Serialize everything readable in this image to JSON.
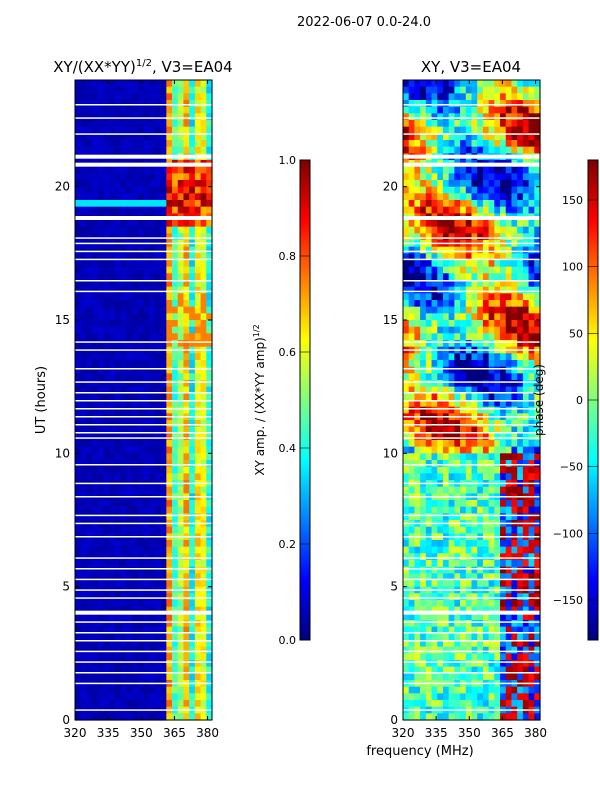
{
  "figure": {
    "suptitle": "2022-06-07 0.0-24.0",
    "shared_xlabel": "frequency (MHz)"
  },
  "chart_data": [
    {
      "type": "heatmap",
      "title": "XY/(XX*YY)^1/2, V3=EA04",
      "title_main": "XY/(XX*YY)",
      "title_exp": "1/2",
      "title_tail": ", V3=EA04",
      "xlabel": "frequency (MHz)",
      "ylabel": "UT (hours)",
      "xlim": [
        320,
        382
      ],
      "ylim": [
        0,
        24
      ],
      "xticks": [
        320,
        335,
        350,
        365,
        380
      ],
      "yticks": [
        0,
        5,
        10,
        15,
        20
      ],
      "colorbar": {
        "label_main": "XY amp. / (XX*YY amp)",
        "label_exp": "1/2",
        "range": [
          0.0,
          1.0
        ],
        "ticks": [
          "0.0",
          "0.2",
          "0.4",
          "0.6",
          "0.8",
          "1.0"
        ],
        "tick_values": [
          0.0,
          0.2,
          0.4,
          0.6,
          0.8,
          1.0
        ]
      },
      "colormap": "jet"
    },
    {
      "type": "heatmap",
      "title": "XY, V3=EA04",
      "xlabel": "frequency (MHz)",
      "ylabel": "",
      "xlim": [
        320,
        382
      ],
      "ylim": [
        0,
        24
      ],
      "xticks": [
        320,
        335,
        350,
        365,
        380
      ],
      "yticks": [
        0,
        5,
        10,
        15,
        20
      ],
      "colorbar": {
        "label": "phase (deg)",
        "range": [
          -180,
          180
        ],
        "ticks": [
          "−150",
          "−100",
          "−50",
          "0",
          "50",
          "100",
          "150"
        ],
        "tick_values": [
          -150,
          -100,
          -50,
          0,
          50,
          100,
          150
        ]
      },
      "colormap": "jet"
    }
  ],
  "colors": {
    "jet": [
      "#00007f",
      "#0000ff",
      "#007fff",
      "#00ffff",
      "#7fff7f",
      "#ffff00",
      "#ff7f00",
      "#ff0000",
      "#7f0000"
    ],
    "background": "#ffffff",
    "axis": "#000000"
  }
}
